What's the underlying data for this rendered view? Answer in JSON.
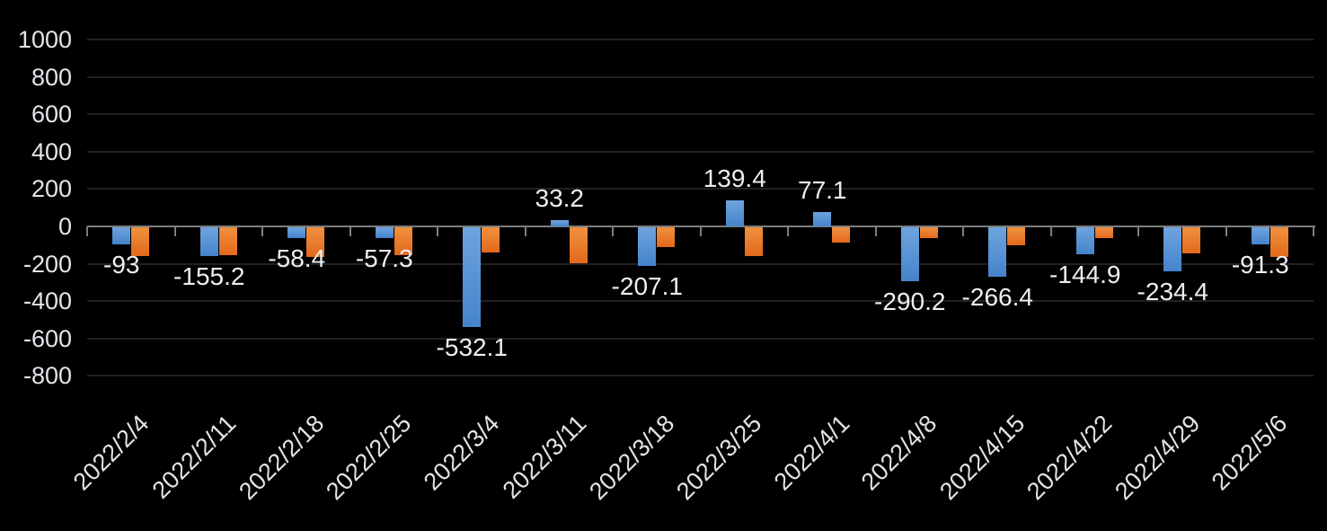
{
  "chart_data": {
    "type": "bar",
    "title": "",
    "xlabel": "",
    "ylabel": "",
    "categories": [
      "2022/2/4",
      "2022/2/11",
      "2022/2/18",
      "2022/2/25",
      "2022/3/4",
      "2022/3/11",
      "2022/3/18",
      "2022/3/25",
      "2022/4/1",
      "2022/4/8",
      "2022/4/15",
      "2022/4/22",
      "2022/4/29",
      "2022/5/6"
    ],
    "series": [
      {
        "id": "blue-series",
        "color": "#5b9bd5",
        "values": [
          -93,
          -155.2,
          -58.4,
          -57.3,
          -532.1,
          33.2,
          -207.1,
          139.4,
          77.1,
          -290.2,
          -266.4,
          -144.9,
          -234.4,
          -91.3
        ],
        "data_labels_visible": true
      },
      {
        "id": "orange-series",
        "color": "#ed7d31",
        "values": [
          -152,
          -150,
          -160,
          -148,
          -135,
          -190,
          -104,
          -152,
          -80,
          -57,
          -97,
          -57,
          -140,
          -160
        ],
        "values_estimated": true,
        "data_labels_visible": false
      }
    ],
    "data_labels": [
      "-93",
      "-155.2",
      "-58.4",
      "-57.3",
      "-532.1",
      "33.2",
      "-207.1",
      "139.4",
      "77.1",
      "-290.2",
      "-266.4",
      "-144.9",
      "-234.4",
      "-91.3"
    ],
    "yticks": [
      "1000",
      "800",
      "600",
      "400",
      "200",
      "0",
      "-200",
      "-400",
      "-600",
      "-800"
    ],
    "ytick_values": [
      1000,
      800,
      600,
      400,
      200,
      0,
      -200,
      -400,
      -600,
      -800
    ],
    "ylim": [
      -800,
      1000
    ],
    "grid": true,
    "legend": "none",
    "colors": {
      "background": "#000000",
      "text": "#e2e4e9",
      "gridline": "#212121",
      "axis": "#7d7d7d",
      "bar_blue": "#5b9bd5",
      "bar_orange": "#ed7d31"
    }
  }
}
